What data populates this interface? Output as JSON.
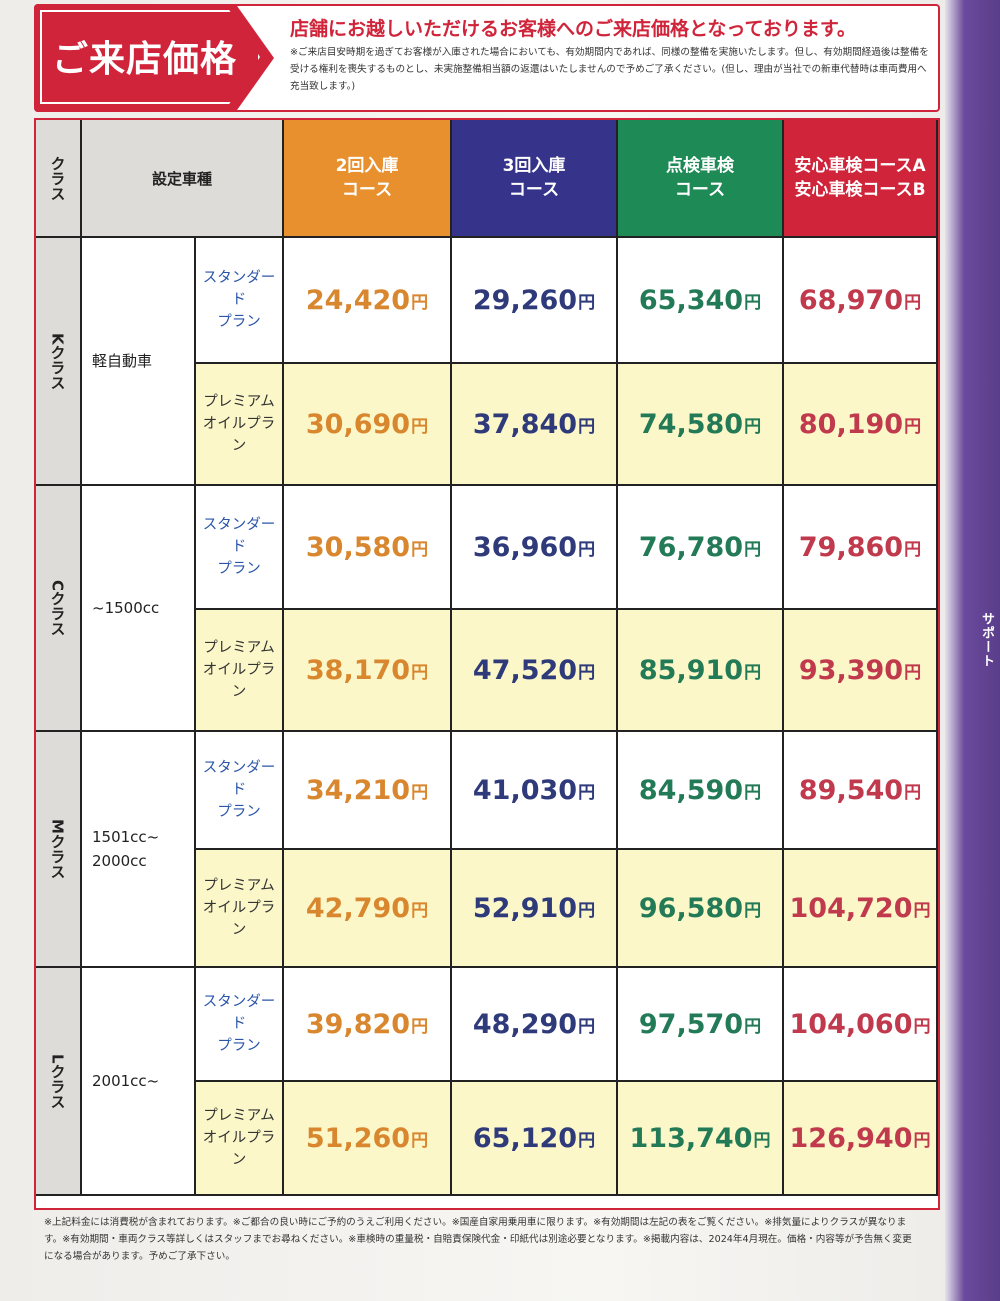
{
  "header": {
    "title": "ご来店価格",
    "lead": "店舗にお越しいただけるお客様へのご来店価格となっております。",
    "note": "※ご来店目安時期を過ぎてお客様が入庫された場合においても、有効期間内であれば、同様の整備を実施いたします。但し、有効期間経過後は整備を受ける権利を喪失するものとし、未実施整備相当額の返還はいたしませんので予めご了承ください。(但し、理由が当社での新車代替時は車両費用へ充当致します。)"
  },
  "table": {
    "col_class": "クラス",
    "col_model": "設定車種",
    "courses": [
      {
        "label_1": "2回入庫",
        "label_2": "コース",
        "color": "#e8902e"
      },
      {
        "label_1": "3回入庫",
        "label_2": "コース",
        "color": "#35338a"
      },
      {
        "label_1": "点検車検",
        "label_2": "コース",
        "color": "#1e8a55"
      },
      {
        "label_1": "安心車検コースA",
        "label_2": "安心車検コースB",
        "color": "#d0243a"
      }
    ],
    "yen": "円",
    "classes": [
      {
        "class": "Kクラス",
        "model": "軽自動車",
        "plans": [
          {
            "name_1": "スタンダード",
            "name_2": "プラン",
            "prices": [
              "24,420",
              "29,260",
              "65,340",
              "68,970"
            ]
          },
          {
            "name_1": "プレミアム",
            "name_2": "オイルプラン",
            "prices": [
              "30,690",
              "37,840",
              "74,580",
              "80,190"
            ]
          }
        ]
      },
      {
        "class": "Cクラス",
        "model": "~1500cc",
        "plans": [
          {
            "name_1": "スタンダード",
            "name_2": "プラン",
            "prices": [
              "30,580",
              "36,960",
              "76,780",
              "79,860"
            ]
          },
          {
            "name_1": "プレミアム",
            "name_2": "オイルプラン",
            "prices": [
              "38,170",
              "47,520",
              "85,910",
              "93,390"
            ]
          }
        ]
      },
      {
        "class": "Mクラス",
        "model_1": "1501cc~",
        "model_2": "2000cc",
        "plans": [
          {
            "name_1": "スタンダード",
            "name_2": "プラン",
            "prices": [
              "34,210",
              "41,030",
              "84,590",
              "89,540"
            ]
          },
          {
            "name_1": "プレミアム",
            "name_2": "オイルプラン",
            "prices": [
              "42,790",
              "52,910",
              "96,580",
              "104,720"
            ]
          }
        ]
      },
      {
        "class": "Lクラス",
        "model": "2001cc~",
        "plans": [
          {
            "name_1": "スタンダード",
            "name_2": "プラン",
            "prices": [
              "39,820",
              "48,290",
              "97,570",
              "104,060"
            ]
          },
          {
            "name_1": "プレミアム",
            "name_2": "オイルプラン",
            "prices": [
              "51,260",
              "65,120",
              "113,740",
              "126,940"
            ]
          }
        ]
      }
    ]
  },
  "footer": {
    "note": "※上記料金には消費税が含まれております。※ご都合の良い時にご予約のうえご利用ください。※国産自家用乗用車に限ります。※有効期間は左記の表をご覧ください。※排気量によりクラスが異なります。※有効期間・車両クラス等詳しくはスタッフまでお尋ねください。※車検時の重量税・自賠責保険代金・印紙代は別途必要となります。※掲載内容は、2024年4月現在。価格・内容等が予告無く変更になる場合があります。予めご了承下さい。"
  },
  "side_tab": "サポート"
}
